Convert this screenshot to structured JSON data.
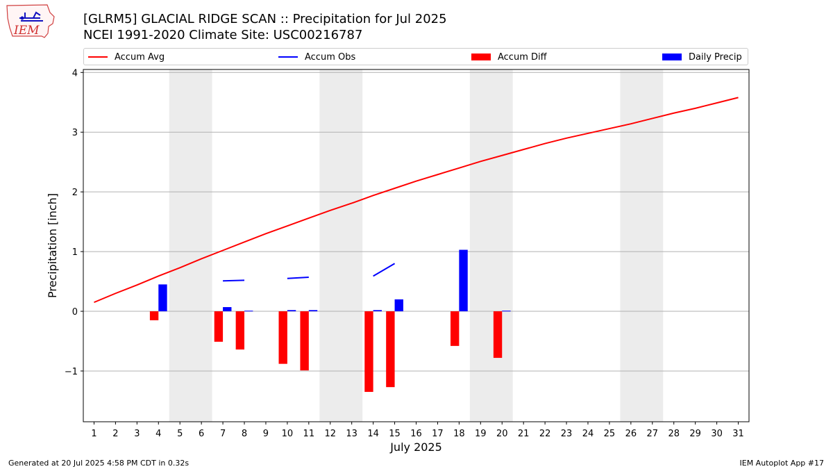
{
  "header": {
    "title_line1": "[GLRM5] GLACIAL RIDGE SCAN :: Precipitation for Jul 2025",
    "title_line2": "NCEI 1991-2020 Climate Site: USC00216787"
  },
  "logo": {
    "text": "IEM"
  },
  "footer": {
    "generated": "Generated at 20 Jul 2025 4:58 PM CDT in 0.32s",
    "app": "IEM Autoplot App #17"
  },
  "colors": {
    "accum_avg": "#ff0000",
    "accum_obs": "#0000ff",
    "accum_diff": "#ff0000",
    "daily_precip": "#0000ff",
    "weekend_shade": "#ececec",
    "grid": "#b0b0b0"
  },
  "chart_data": {
    "type": "bar",
    "title": "[GLRM5] GLACIAL RIDGE SCAN :: Precipitation for Jul 2025",
    "subtitle": "NCEI 1991-2020 Climate Site: USC00216787",
    "xlabel": "July 2025",
    "ylabel": "Precipitation [inch]",
    "xlim": [
      0.5,
      31.5
    ],
    "ylim": [
      -1.85,
      4.05
    ],
    "yticks": [
      -1,
      0,
      1,
      2,
      3,
      4
    ],
    "ytick_labels": [
      "−1",
      "0",
      "1",
      "2",
      "3",
      "4"
    ],
    "days": [
      1,
      2,
      3,
      4,
      5,
      6,
      7,
      8,
      9,
      10,
      11,
      12,
      13,
      14,
      15,
      16,
      17,
      18,
      19,
      20,
      21,
      22,
      23,
      24,
      25,
      26,
      27,
      28,
      29,
      30,
      31
    ],
    "weekend_spans": [
      [
        4.5,
        6.5
      ],
      [
        11.5,
        13.5
      ],
      [
        18.5,
        20.5
      ],
      [
        25.5,
        27.5
      ]
    ],
    "legend": {
      "accum_avg": "Accum Avg",
      "accum_obs": "Accum Obs",
      "accum_diff": "Accum Diff",
      "daily_precip": "Daily Precip",
      "placement": "top"
    },
    "series": [
      {
        "name": "Accum Avg",
        "kind": "line",
        "x": [
          1,
          2,
          3,
          4,
          5,
          6,
          7,
          8,
          9,
          10,
          11,
          12,
          13,
          14,
          15,
          16,
          17,
          18,
          19,
          20,
          21,
          22,
          23,
          24,
          25,
          26,
          27,
          28,
          29,
          30,
          31
        ],
        "values": [
          0.15,
          0.3,
          0.44,
          0.59,
          0.73,
          0.88,
          1.02,
          1.16,
          1.3,
          1.43,
          1.56,
          1.69,
          1.81,
          1.94,
          2.06,
          2.18,
          2.29,
          2.4,
          2.51,
          2.61,
          2.71,
          2.81,
          2.9,
          2.98,
          3.06,
          3.14,
          3.23,
          3.32,
          3.4,
          3.49,
          3.58
        ]
      },
      {
        "name": "Accum Obs",
        "kind": "line-segments",
        "segments": [
          {
            "x": [
              7,
              8
            ],
            "values": [
              0.51,
              0.52
            ]
          },
          {
            "x": [
              10,
              11
            ],
            "values": [
              0.55,
              0.57
            ]
          },
          {
            "x": [
              14,
              15
            ],
            "values": [
              0.59,
              0.8
            ]
          }
        ]
      },
      {
        "name": "Accum Diff",
        "kind": "bar",
        "offset": -0.2,
        "x": [
          4,
          7,
          8,
          10,
          11,
          14,
          15,
          18,
          20
        ],
        "values": [
          -0.15,
          -0.51,
          -0.64,
          -0.88,
          -0.99,
          -1.35,
          -1.27,
          -0.58,
          -0.78
        ]
      },
      {
        "name": "Daily Precip",
        "kind": "bar",
        "offset": 0.2,
        "x": [
          4,
          7,
          8,
          10,
          11,
          14,
          15,
          18,
          20
        ],
        "values": [
          0.45,
          0.07,
          0.01,
          0.02,
          0.02,
          0.02,
          0.2,
          1.03,
          0.01
        ]
      }
    ]
  }
}
